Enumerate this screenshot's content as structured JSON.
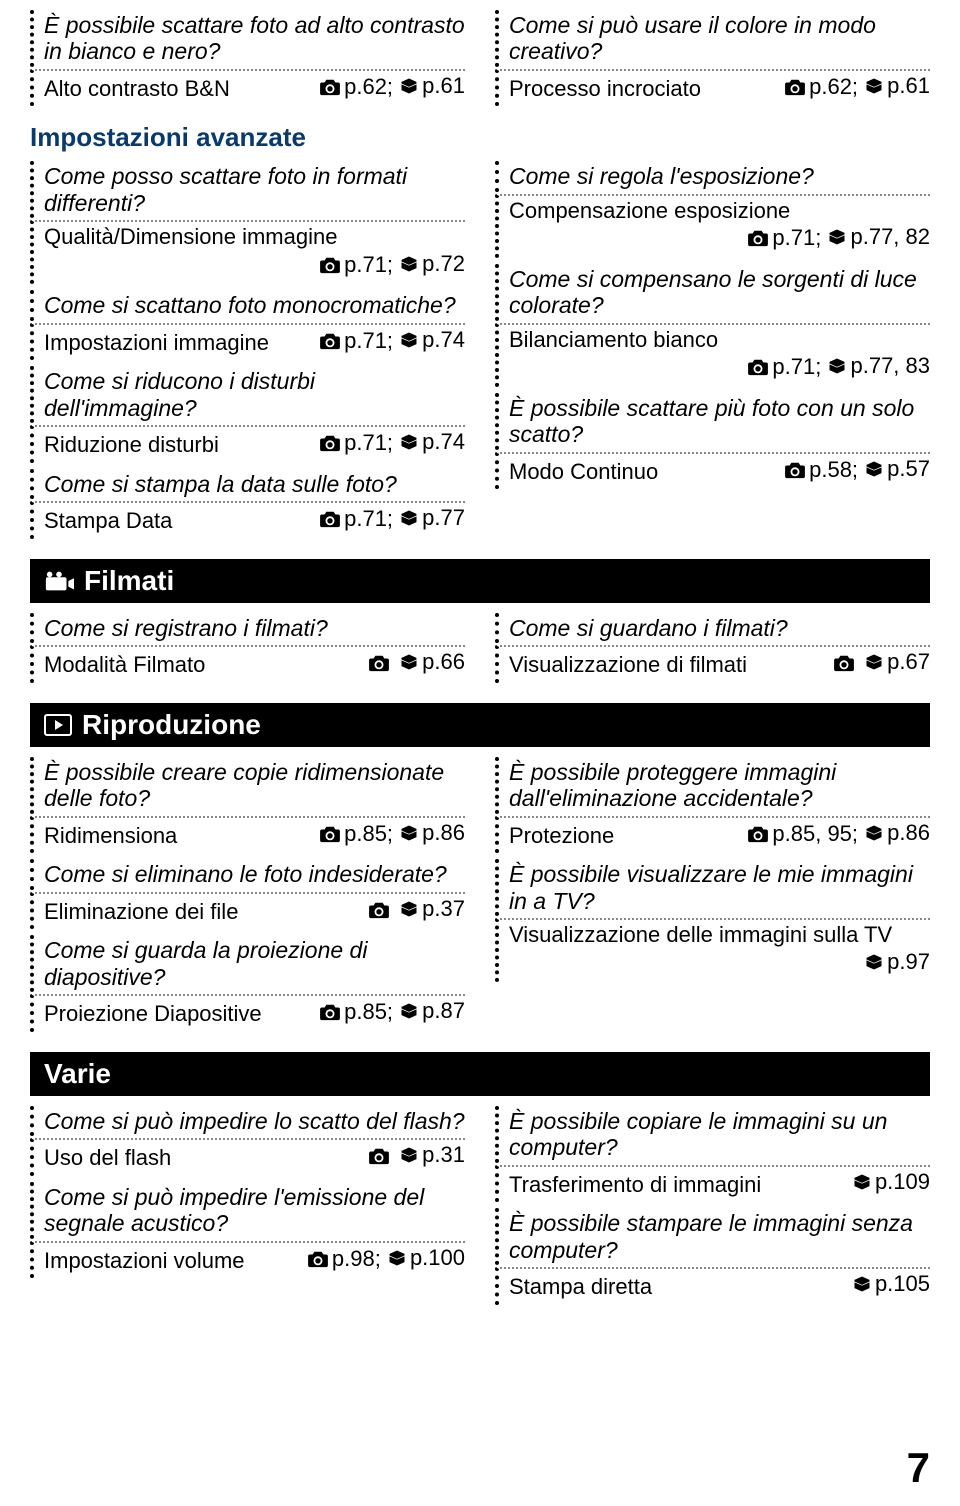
{
  "page_number": "7",
  "icons": {
    "camera": "camera",
    "book": "book",
    "video": "video",
    "play": "play"
  },
  "top": {
    "left": [
      {
        "q": "È possibile scattare foto ad alto contrasto in bianco e nero?",
        "a": "Alto contrasto B&N",
        "refs": [
          {
            "icon": "camera",
            "text": "p.62;"
          },
          {
            "icon": "book",
            "text": "p.61"
          }
        ]
      }
    ],
    "right": [
      {
        "q": "Come si può usare il colore in modo creativo?",
        "a": "Processo incrociato",
        "refs": [
          {
            "icon": "camera",
            "text": "p.62;"
          },
          {
            "icon": "book",
            "text": "p.61"
          }
        ]
      }
    ]
  },
  "advanced": {
    "heading": "Impostazioni avanzate",
    "left": [
      {
        "q": "Come posso scattare foto in formati differenti?",
        "a": "Qualità/Dimensione immagine",
        "refs": [
          {
            "icon": "camera",
            "text": "p.71;"
          },
          {
            "icon": "book",
            "text": "p.72"
          }
        ],
        "wrap": true
      },
      {
        "q": "Come si scattano foto monocromatiche?",
        "a": "Impostazioni immagine",
        "refs": [
          {
            "icon": "camera",
            "text": "p.71;"
          },
          {
            "icon": "book",
            "text": "p.74"
          }
        ]
      },
      {
        "q": "Come si riducono i disturbi dell'immagine?",
        "a": "Riduzione disturbi",
        "refs": [
          {
            "icon": "camera",
            "text": "p.71;"
          },
          {
            "icon": "book",
            "text": "p.74"
          }
        ]
      },
      {
        "q": "Come si stampa la data sulle foto?",
        "a": "Stampa Data",
        "refs": [
          {
            "icon": "camera",
            "text": "p.71;"
          },
          {
            "icon": "book",
            "text": "p.77"
          }
        ]
      }
    ],
    "right": [
      {
        "q": "Come si regola l'esposizione?",
        "a": "Compensazione esposizione",
        "refs": [
          {
            "icon": "camera",
            "text": "p.71;"
          },
          {
            "icon": "book",
            "text": "p.77, 82"
          }
        ],
        "wrap": true
      },
      {
        "q": "Come si compensano le sorgenti di luce colorate?",
        "a": "Bilanciamento bianco",
        "refs": [
          {
            "icon": "camera",
            "text": "p.71;"
          },
          {
            "icon": "book",
            "text": "p.77, 83"
          }
        ],
        "wrap": true
      },
      {
        "q": "È possibile scattare più foto con un solo scatto?",
        "a": "Modo Continuo",
        "refs": [
          {
            "icon": "camera",
            "text": "p.58;"
          },
          {
            "icon": "book",
            "text": "p.57"
          }
        ]
      }
    ]
  },
  "filmati": {
    "heading": "Filmati",
    "icon": "video",
    "left": [
      {
        "q": "Come si registrano i filmati?",
        "a": "Modalità Filmato",
        "refs": [
          {
            "icon": "camera",
            "text": ""
          },
          {
            "icon": "book",
            "text": "p.66"
          }
        ]
      }
    ],
    "right": [
      {
        "q": "Come si guardano i filmati?",
        "a": "Visualizzazione di filmati",
        "refs": [
          {
            "icon": "camera",
            "text": ""
          },
          {
            "icon": "book",
            "text": "p.67"
          }
        ]
      }
    ]
  },
  "riproduzione": {
    "heading": "Riproduzione",
    "icon": "play",
    "left": [
      {
        "q": "È possibile creare copie ridimensionate delle foto?",
        "a": "Ridimensiona",
        "refs": [
          {
            "icon": "camera",
            "text": "p.85;"
          },
          {
            "icon": "book",
            "text": "p.86"
          }
        ]
      },
      {
        "q": "Come si eliminano le foto indesiderate?",
        "a": "Eliminazione dei file",
        "refs": [
          {
            "icon": "camera",
            "text": ""
          },
          {
            "icon": "book",
            "text": "p.37"
          }
        ]
      },
      {
        "q": "Come si guarda la proiezione di diapositive?",
        "a": "Proiezione Diapositive",
        "refs": [
          {
            "icon": "camera",
            "text": "p.85;"
          },
          {
            "icon": "book",
            "text": "p.87"
          }
        ]
      }
    ],
    "right": [
      {
        "q": "È possibile proteggere immagini dall'eliminazione accidentale?",
        "a": "Protezione",
        "refs": [
          {
            "icon": "camera",
            "text": "p.85, 95;"
          },
          {
            "icon": "book",
            "text": "p.86"
          }
        ]
      },
      {
        "q": "È possibile visualizzare le mie immagini in a TV?",
        "a": "Visualizzazione delle immagini sulla TV",
        "refs": [
          {
            "icon": "book",
            "text": "p.97"
          }
        ],
        "wrap": true
      }
    ]
  },
  "varie": {
    "heading": "Varie",
    "left": [
      {
        "q": "Come si può impedire lo scatto del flash?",
        "a": "Uso del flash",
        "refs": [
          {
            "icon": "camera",
            "text": ""
          },
          {
            "icon": "book",
            "text": "p.31"
          }
        ]
      },
      {
        "q": "Come si può impedire l'emissione del segnale acustico?",
        "a": "Impostazioni volume",
        "refs": [
          {
            "icon": "camera",
            "text": "p.98;"
          },
          {
            "icon": "book",
            "text": "p.100"
          }
        ]
      }
    ],
    "right": [
      {
        "q": "È possibile copiare le immagini su un computer?",
        "a": "Trasferimento di immagini",
        "refs": [
          {
            "icon": "book",
            "text": "p.109"
          }
        ]
      },
      {
        "q": "È possibile stampare le immagini senza computer?",
        "a": "Stampa diretta",
        "refs": [
          {
            "icon": "book",
            "text": "p.105"
          }
        ]
      }
    ]
  }
}
